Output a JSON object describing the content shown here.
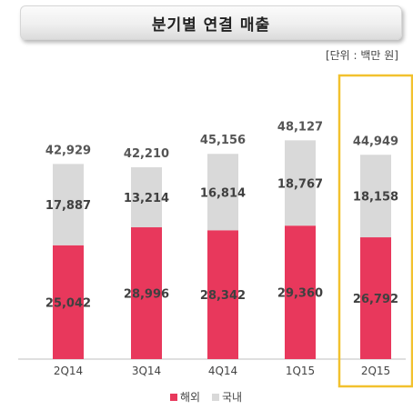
{
  "title": "분기별 연결 매출",
  "unit": "[단위 : 백만 원]",
  "colors": {
    "overseas": "#e8385c",
    "domestic": "#d9d9d9",
    "highlight": "#f2c12e",
    "axis": "#bfbfbf"
  },
  "chart_data": {
    "type": "bar",
    "stacked": true,
    "categories": [
      "2Q14",
      "3Q14",
      "4Q14",
      "1Q15",
      "2Q15"
    ],
    "series": [
      {
        "name": "해외",
        "values": [
          25042,
          28996,
          28342,
          29360,
          26792
        ],
        "labels": [
          "25,042",
          "28,996",
          "28,342",
          "29,360",
          "26,792"
        ]
      },
      {
        "name": "국내",
        "values": [
          17887,
          13214,
          16814,
          18767,
          18158
        ],
        "labels": [
          "17,887",
          "13,214",
          "16,814",
          "18,767",
          "18,158"
        ]
      }
    ],
    "totals": [
      42929,
      42210,
      45156,
      48127,
      44949
    ],
    "total_labels": [
      "42,929",
      "42,210",
      "45,156",
      "48,127",
      "44,949"
    ],
    "highlight_category": "2Q15",
    "ylim": [
      0,
      50000
    ],
    "legend_position": "bottom",
    "grid": false
  }
}
